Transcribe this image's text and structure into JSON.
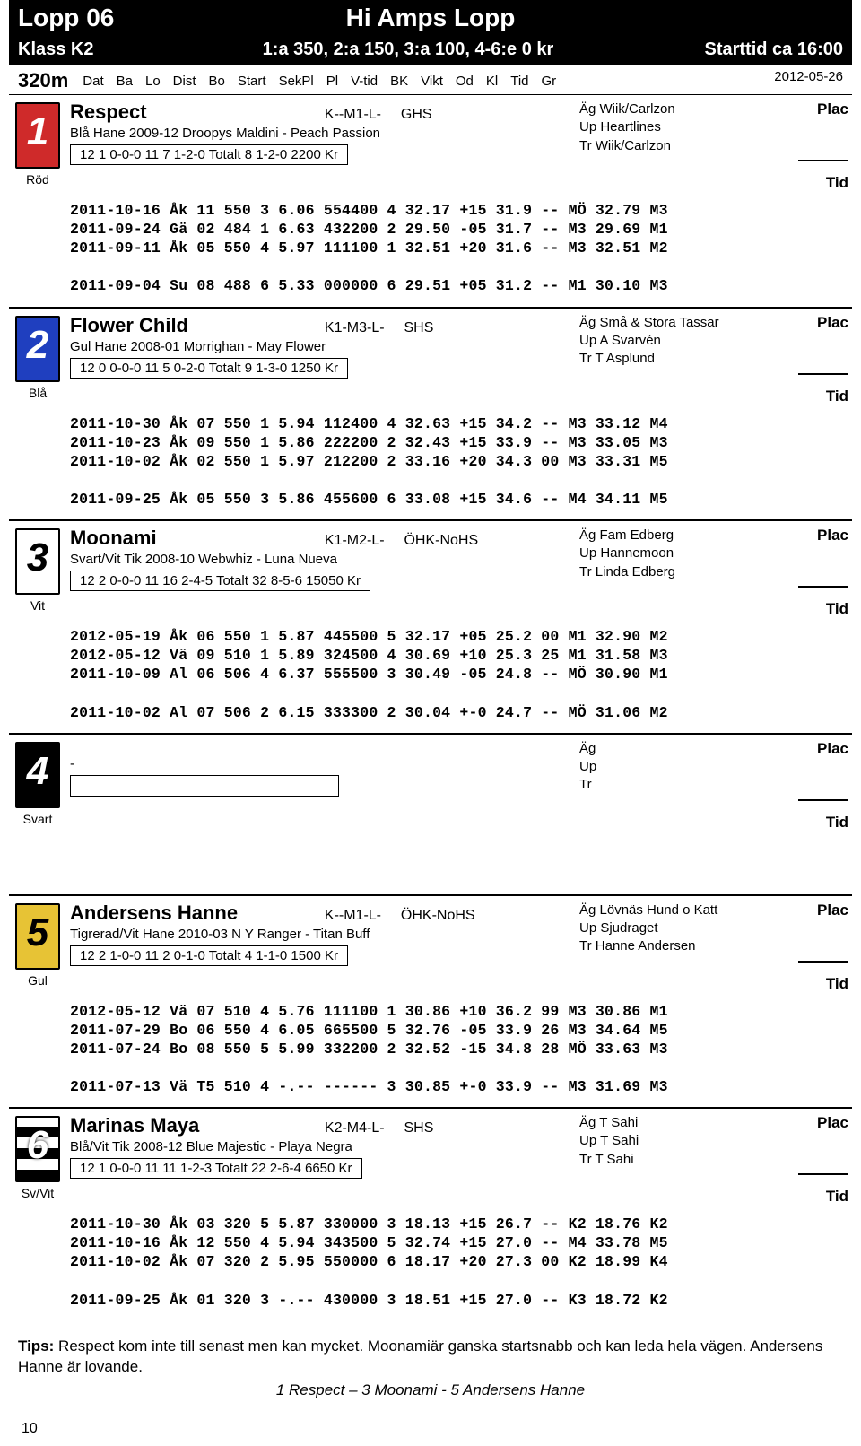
{
  "header": {
    "race_no": "Lopp 06",
    "race_name": "Hi Amps Lopp",
    "klass": "Klass K2",
    "prize": "1:a 350, 2:a 150, 3:a 100, 4-6:e 0 kr",
    "start_time": "Starttid ca 16:00",
    "distance": "320m",
    "column_labels": [
      "Dat",
      "Ba",
      "Lo",
      "Dist",
      "Bo",
      "Start",
      "SekPl",
      "Pl",
      "V-tid",
      "BK",
      "Vikt",
      "Od",
      "Kl",
      "Tid",
      "Gr"
    ],
    "race_date": "2012-05-26"
  },
  "traps": [
    {
      "num": "1",
      "bg": "#cf2a2a",
      "fg": "#ffffff",
      "label": "Röd"
    },
    {
      "num": "2",
      "bg": "#1f3fbf",
      "fg": "#ffffff",
      "label": "Blå"
    },
    {
      "num": "3",
      "bg": "#ffffff",
      "fg": "#000000",
      "label": "Vit"
    },
    {
      "num": "4",
      "bg": "#000000",
      "fg": "#ffffff",
      "label": "Svart"
    },
    {
      "num": "5",
      "bg": "#e7c335",
      "fg": "#000000",
      "label": "Gul"
    },
    {
      "num": "6",
      "bg": "#000000",
      "fg": "#ffffff",
      "label": "Sv/Vit",
      "stripes": true
    }
  ],
  "entries": [
    {
      "name": "Respect",
      "cls": "K--M1-L-",
      "org": "GHS",
      "owner": "Äg Wiik/Carlzon",
      "up": "Up Heartlines",
      "tr": "Tr  Wiik/Carlzon",
      "breed": "Blå   Hane  2009-12   Droopys Maldini - Peach Passion",
      "stats": "12 1 0-0-0   11 7 1-2-0   Totalt 8 1-2-0    2200 Kr",
      "form": "2011-10-16 Åk 11 550 3 6.06 554400 4 32.17 +15 31.9 -- MÖ 32.79 M3\n2011-09-24 Gä 02 484 1 6.63 432200 2 29.50 -05 31.7 -- M3 29.69 M1\n2011-09-11 Åk 05 550 4 5.97 111100 1 32.51 +20 31.6 -- M3 32.51 M2\n\n2011-09-04 Su 08 488 6 5.33 000000 6 29.51 +05 31.2 -- M1 30.10 M3"
    },
    {
      "name": "Flower Child",
      "cls": "K1-M3-L-",
      "org": "SHS",
      "owner": "Äg Små & Stora Tassar",
      "up": "Up A Svarvén",
      "tr": "Tr  T Asplund",
      "breed": "Gul   Hane  2008-01   Morrighan - May Flower",
      "stats": "12 0 0-0-0   11 5 0-2-0   Totalt 9 1-3-0    1250 Kr",
      "form": "2011-10-30 Åk 07 550 1 5.94 112400 4 32.63 +15 34.2 -- M3 33.12 M4\n2011-10-23 Åk 09 550 1 5.86 222200 2 32.43 +15 33.9 -- M3 33.05 M3\n2011-10-02 Åk 02 550 1 5.97 212200 2 33.16 +20 34.3 00 M3 33.31 M5\n\n2011-09-25 Åk 05 550 3 5.86 455600 6 33.08 +15 34.6 -- M4 34.11 M5"
    },
    {
      "name": "Moonami",
      "cls": "K1-M2-L-",
      "org": "ÖHK-NoHS",
      "owner": "Äg Fam Edberg",
      "up": "Up Hannemoon",
      "tr": "Tr  Linda Edberg",
      "breed": "Svart/Vit   Tik   2008-10   Webwhiz - Luna Nueva",
      "stats": "12 2 0-0-0   11 16 2-4-5   Totalt 32 8-5-6    15050 Kr",
      "form": "2012-05-19 Åk 06 550 1 5.87 445500 5 32.17 +05 25.2 00 M1 32.90 M2\n2012-05-12 Vä 09 510 1 5.89 324500 4 30.69 +10 25.3 25 M1 31.58 M3\n2011-10-09 Al 06 506 4 6.37 555500 3 30.49 -05 24.8 -- MÖ 30.90 M1\n\n2011-10-02 Al 07 506 2 6.15 333300 2 30.04 +-0 24.7 -- MÖ 31.06 M2"
    },
    {
      "name": "",
      "cls": "",
      "org": "",
      "owner": "Äg",
      "up": "Up",
      "tr": "Tr",
      "breed": "        -",
      "stats": " ",
      "form": ""
    },
    {
      "name": "Andersens Hanne",
      "cls": "K--M1-L-",
      "org": "ÖHK-NoHS",
      "owner": "Äg Lövnäs Hund o Katt",
      "up": "Up Sjudraget",
      "tr": "Tr  Hanne Andersen",
      "breed": "Tigrerad/Vit   Hane  2010-03   N Y Ranger - Titan Buff",
      "stats": "12 2 1-0-0   11 2 0-1-0   Totalt 4 1-1-0    1500 Kr",
      "form": "2012-05-12 Vä 07 510 4 5.76 111100 1 30.86 +10 36.2 99 M3 30.86 M1\n2011-07-29 Bo 06 550 4 6.05 665500 5 32.76 -05 33.9 26 M3 34.64 M5\n2011-07-24 Bo 08 550 5 5.99 332200 2 32.52 -15 34.8 28 MÖ 33.63 M3\n\n2011-07-13 Vä T5 510 4 -.-- ------ 3 30.85 +-0 33.9 -- M3 31.69 M3"
    },
    {
      "name": "Marinas Maya",
      "cls": "K2-M4-L-",
      "org": "SHS",
      "owner": "Äg T Sahi",
      "up": "Up T Sahi",
      "tr": "Tr  T Sahi",
      "breed": "Blå/Vit   Tik   2008-12   Blue Majestic - Playa Negra",
      "stats": "12 1 0-0-0   11 11 1-2-3   Totalt 22 2-6-4    6650 Kr",
      "form": "2011-10-30 Åk 03 320 5 5.87 330000 3 18.13 +15 26.7 -- K2 18.76 K2\n2011-10-16 Åk 12 550 4 5.94 343500 5 32.74 +15 27.0 -- M4 33.78 M5\n2011-10-02 Åk 07 320 2 5.95 550000 6 18.17 +20 27.3 00 K2 18.99 K4\n\n2011-09-25 Åk 01 320 3 -.-- 430000 3 18.51 +15 27.0 -- K3 18.72 K2"
    }
  ],
  "labels": {
    "plac": "Plac",
    "tid": "Tid",
    "tips_label": "Tips:",
    "tips_text": " Respect kom inte till senast men kan mycket. Moonamiär ganska startsnabb och kan leda hela vägen. Andersens Hanne är lovande.",
    "pick": "1 Respect – 3 Moonami - 5 Andersens Hanne",
    "page": "10"
  }
}
